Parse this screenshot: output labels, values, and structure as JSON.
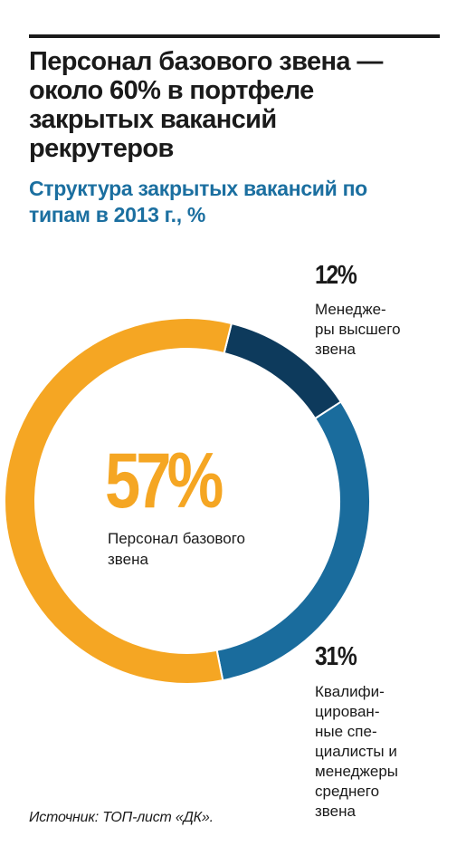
{
  "title": "Персонал базового звена —\nоколо 60% в портфеле\nзакрытых вакансий\nрекрутеров",
  "subtitle": "Структура закрытых вакансий по\nтипам в 2013 г., %",
  "source": "Источник: ТОП-лист «ДК».",
  "chart_data": {
    "type": "pie",
    "donut": true,
    "slices": [
      {
        "label": "Менедже-\nры высшего\nзвена",
        "value": 12,
        "value_label": "12%",
        "color": "#0d3a5c"
      },
      {
        "label": "Квалифи-\nцирован-\nные спе-\nциалисты и\nменеджеры\nсреднего\nзвена",
        "value": 31,
        "value_label": "31%",
        "color": "#1a6c9d"
      },
      {
        "label": "Персонал базового\nзвена",
        "value": 57,
        "value_label": "57%",
        "color": "#f5a623"
      }
    ]
  }
}
